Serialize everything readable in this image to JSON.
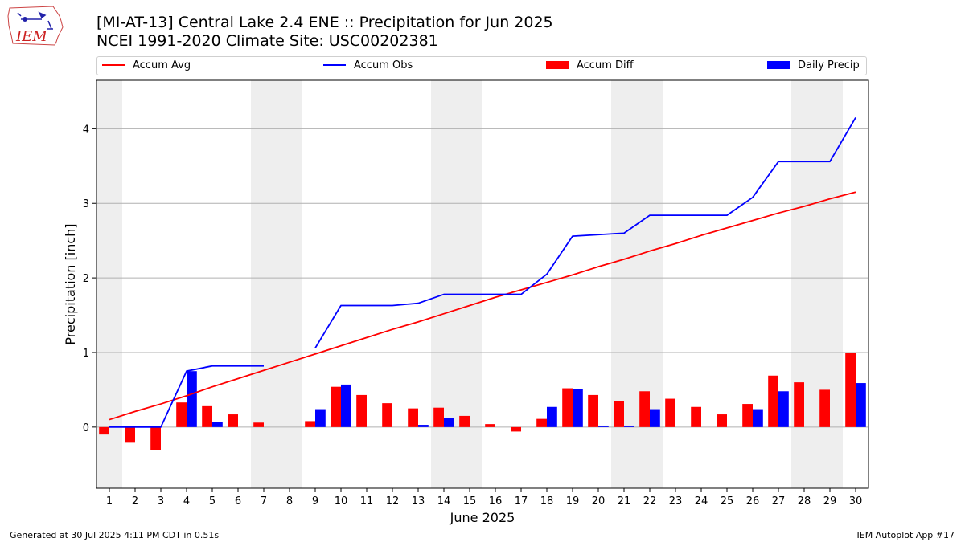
{
  "header": {
    "title_line1": "[MI-AT-13] Central Lake 2.4 ENE :: Precipitation for Jun 2025",
    "title_line2": "NCEI 1991-2020 Climate Site: USC00202381",
    "logo_text": "IEM"
  },
  "footer": {
    "left": "Generated at 30 Jul 2025 4:11 PM CDT in 0.51s",
    "right": "IEM Autoplot App #17"
  },
  "colors": {
    "accum_avg": "#ff0000",
    "accum_obs": "#0000ff",
    "accum_diff": "#ff0000",
    "daily_precip": "#0000ff",
    "weekend_shade": "#eeeeee",
    "grid": "#b0b0b0"
  },
  "chart_data": {
    "type": "bar",
    "xlabel": "June 2025",
    "ylabel": "Precipitation [inch]",
    "xlim": [
      0.5,
      30.5
    ],
    "ylim": [
      -0.82,
      4.65
    ],
    "yticks": [
      0,
      1,
      2,
      3,
      4
    ],
    "grid": "horizontal",
    "legend_position": "top",
    "days": [
      1,
      2,
      3,
      4,
      5,
      6,
      7,
      8,
      9,
      10,
      11,
      12,
      13,
      14,
      15,
      16,
      17,
      18,
      19,
      20,
      21,
      22,
      23,
      24,
      25,
      26,
      27,
      28,
      29,
      30
    ],
    "weekend_spans": [
      [
        0.5,
        1.5
      ],
      [
        6.5,
        8.5
      ],
      [
        13.5,
        15.5
      ],
      [
        20.5,
        22.5
      ],
      [
        27.5,
        29.5
      ]
    ],
    "series": [
      {
        "name": "Accum Avg",
        "kind": "line",
        "values": [
          0.1,
          0.21,
          0.31,
          0.42,
          0.54,
          0.65,
          0.76,
          0.87,
          0.98,
          1.09,
          1.2,
          1.31,
          1.41,
          1.52,
          1.63,
          1.74,
          1.84,
          1.94,
          2.04,
          2.15,
          2.25,
          2.36,
          2.46,
          2.57,
          2.67,
          2.77,
          2.87,
          2.96,
          3.06,
          3.15
        ]
      },
      {
        "name": "Accum Obs",
        "kind": "line",
        "values": [
          0.0,
          0.0,
          0.0,
          0.75,
          0.82,
          0.82,
          0.82,
          null,
          1.06,
          1.63,
          1.63,
          1.63,
          1.66,
          1.78,
          1.78,
          1.78,
          1.78,
          2.05,
          2.56,
          2.58,
          2.6,
          2.84,
          2.84,
          2.84,
          2.84,
          3.08,
          3.56,
          3.56,
          3.56,
          4.15
        ]
      },
      {
        "name": "Accum Diff",
        "kind": "bar",
        "values": [
          -0.1,
          -0.21,
          -0.31,
          0.33,
          0.28,
          0.17,
          0.06,
          null,
          0.08,
          0.54,
          0.43,
          0.32,
          0.25,
          0.26,
          0.15,
          0.04,
          -0.06,
          0.11,
          0.52,
          0.43,
          0.35,
          0.48,
          0.38,
          0.27,
          0.17,
          0.31,
          0.69,
          0.6,
          0.5,
          1.0
        ]
      },
      {
        "name": "Daily Precip",
        "kind": "bar",
        "values": [
          0,
          0,
          0,
          0.75,
          0.07,
          0,
          0,
          0,
          0.24,
          0.57,
          0,
          0,
          0.03,
          0.12,
          0,
          0,
          0,
          0.27,
          0.51,
          0.02,
          0.02,
          0.24,
          0,
          0,
          0,
          0.24,
          0.48,
          0,
          0,
          0.59
        ]
      }
    ]
  }
}
